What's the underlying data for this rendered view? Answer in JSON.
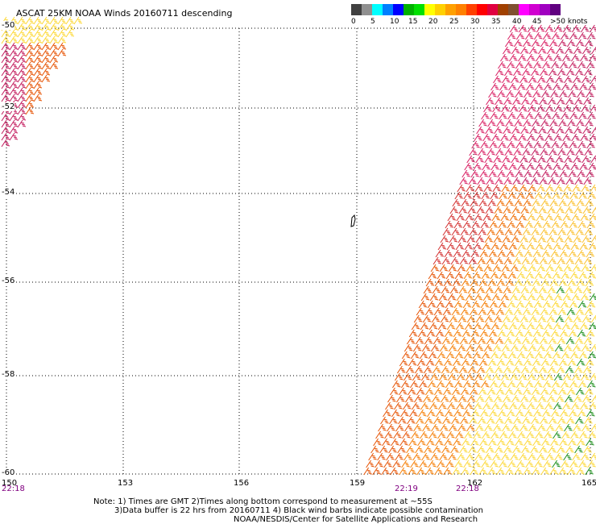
{
  "title": "ASCAT 25KM NOAA Winds 20160711 descending",
  "colorbar": {
    "colors": [
      "#404040",
      "#909090",
      "#00ffff",
      "#0080ff",
      "#0000ff",
      "#00b000",
      "#00e000",
      "#ffff00",
      "#ffd000",
      "#ffa000",
      "#ff8000",
      "#ff4000",
      "#ff0000",
      "#e00040",
      "#a04000",
      "#805030",
      "#ff00ff",
      "#d000d0",
      "#a000c0",
      "#600080"
    ],
    "labels": [
      "0",
      "5",
      "10",
      "15",
      "20",
      "25",
      "30",
      "35",
      "40",
      "45",
      ">50 knots"
    ]
  },
  "map": {
    "lat_labels": [
      "-50",
      "-52",
      "-54",
      "-56",
      "-58",
      "-60"
    ],
    "lon_labels": [
      "150",
      "153",
      "156",
      "159",
      "162",
      "165"
    ],
    "time_labels": [
      "22:18",
      "22:19",
      "22:18"
    ]
  },
  "notes": {
    "line1": "Note: 1) Times are GMT 2)Times along bottom correspond to measurement at ~55S",
    "line2": "3)Data buffer is 22 hrs from 20160711 4) Black wind barbs indicate possible contamination",
    "line3": "NOAA/NESDIS/Center for Satellite Applications and Research"
  }
}
